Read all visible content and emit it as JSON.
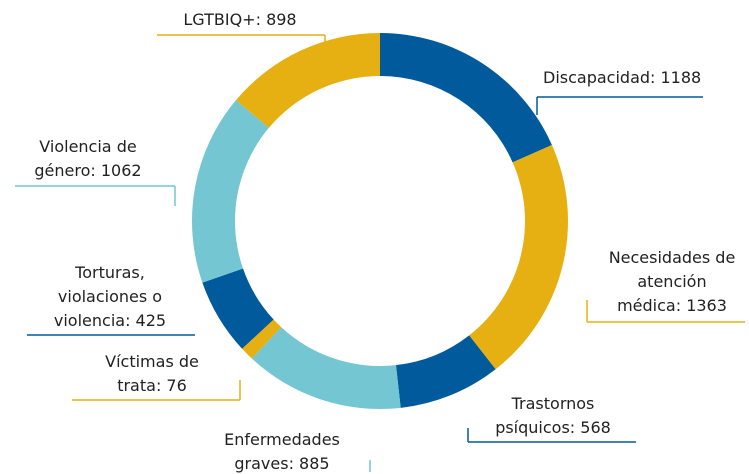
{
  "chart_data": {
    "type": "donut",
    "values": [
      1188,
      1363,
      568,
      885,
      76,
      425,
      1062,
      898
    ],
    "value_labels": [
      [
        "Discapacidad: 1188"
      ],
      [
        "Necesidades de",
        "atención",
        "médica: 1363"
      ],
      [
        "Trastornos",
        "psíquicos: 568"
      ],
      [
        "Enfermedades",
        "graves: 885"
      ],
      [
        "Víctimas de",
        "trata: 76"
      ],
      [
        "Torturas,",
        "violaciones o",
        "violencia: 425"
      ],
      [
        "Violencia de",
        "género: 1062"
      ],
      [
        "LGTBIQ+: 898"
      ]
    ],
    "colors": [
      "#005a9c",
      "#e6b012",
      "#005a9c",
      "#74c6d2",
      "#e6b012",
      "#005a9c",
      "#74c6d2",
      "#e6b012"
    ]
  }
}
